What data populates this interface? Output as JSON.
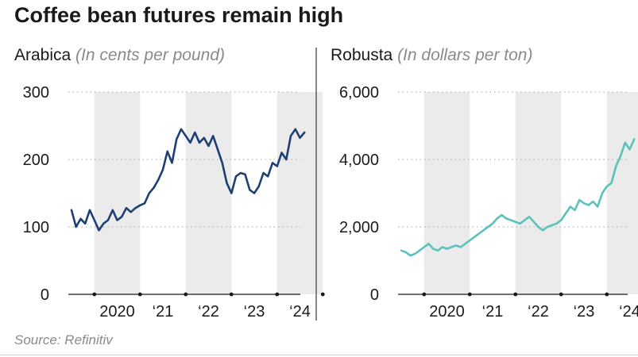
{
  "title": "Coffee bean futures remain high",
  "source": "Source: Refinitiv",
  "colors": {
    "arabica": "#1d3f73",
    "robusta": "#5bc2bb",
    "shade": "#ebebeb",
    "grid": "#b5b5b5"
  },
  "chart_data": [
    {
      "type": "line",
      "panel": "Arabica",
      "units": "(In cents per pound)",
      "ylim": [
        0,
        300
      ],
      "yticks": [
        "0",
        "100",
        "200",
        "300"
      ],
      "xticks": [
        "2020",
        "‘21",
        "‘22",
        "‘23",
        "‘24"
      ],
      "shaded_years": [
        2020,
        2022,
        2024
      ],
      "grid": "horizontal dotted",
      "series": [
        {
          "x": [
            2019.5,
            2019.6,
            2019.7,
            2019.8,
            2019.9,
            2020.0,
            2020.1,
            2020.2,
            2020.3,
            2020.4,
            2020.5,
            2020.6,
            2020.7,
            2020.8,
            2020.9,
            2021.0,
            2021.1,
            2021.2,
            2021.3,
            2021.4,
            2021.5,
            2021.6,
            2021.7,
            2021.8,
            2021.9,
            2022.0,
            2022.1,
            2022.2,
            2022.3,
            2022.4,
            2022.5,
            2022.6,
            2022.7,
            2022.8,
            2022.9,
            2023.0,
            2023.1,
            2023.2,
            2023.3,
            2023.4,
            2023.5,
            2023.6,
            2023.7,
            2023.8,
            2023.9,
            2024.0,
            2024.1,
            2024.2,
            2024.3,
            2024.4,
            2024.5,
            2024.6
          ],
          "values": [
            125,
            100,
            112,
            105,
            125,
            110,
            95,
            105,
            110,
            125,
            110,
            115,
            128,
            122,
            128,
            132,
            135,
            150,
            158,
            170,
            185,
            212,
            195,
            230,
            245,
            235,
            225,
            240,
            225,
            232,
            220,
            235,
            215,
            195,
            165,
            150,
            175,
            180,
            178,
            155,
            150,
            160,
            180,
            175,
            195,
            190,
            210,
            200,
            235,
            245,
            232,
            240
          ]
        }
      ]
    },
    {
      "type": "line",
      "panel": "Robusta",
      "units": "(In dollars per ton)",
      "ylim": [
        0,
        6000
      ],
      "yticks": [
        "0",
        "2,000",
        "4,000",
        "6,000"
      ],
      "xticks": [
        "2020",
        "‘21",
        "‘22",
        "‘23",
        "‘24"
      ],
      "shaded_years": [
        2020,
        2022,
        2024
      ],
      "grid": "horizontal dotted",
      "series": [
        {
          "x": [
            2019.5,
            2019.6,
            2019.7,
            2019.8,
            2019.9,
            2020.0,
            2020.1,
            2020.2,
            2020.3,
            2020.4,
            2020.5,
            2020.6,
            2020.7,
            2020.8,
            2020.9,
            2021.0,
            2021.1,
            2021.2,
            2021.3,
            2021.4,
            2021.5,
            2021.6,
            2021.7,
            2021.8,
            2021.9,
            2022.0,
            2022.1,
            2022.2,
            2022.3,
            2022.4,
            2022.5,
            2022.6,
            2022.7,
            2022.8,
            2022.9,
            2023.0,
            2023.1,
            2023.2,
            2023.3,
            2023.4,
            2023.5,
            2023.6,
            2023.7,
            2023.8,
            2023.9,
            2024.0,
            2024.1,
            2024.2,
            2024.3,
            2024.4,
            2024.5,
            2024.6
          ],
          "values": [
            1300,
            1250,
            1150,
            1200,
            1300,
            1400,
            1500,
            1350,
            1300,
            1400,
            1350,
            1400,
            1450,
            1400,
            1500,
            1600,
            1700,
            1800,
            1900,
            2000,
            2100,
            2250,
            2350,
            2250,
            2200,
            2150,
            2100,
            2200,
            2300,
            2150,
            2000,
            1900,
            2000,
            2050,
            2100,
            2200,
            2400,
            2600,
            2500,
            2800,
            2700,
            2650,
            2750,
            2600,
            3000,
            3200,
            3300,
            3800,
            4100,
            4500,
            4300,
            4600
          ]
        }
      ]
    }
  ]
}
